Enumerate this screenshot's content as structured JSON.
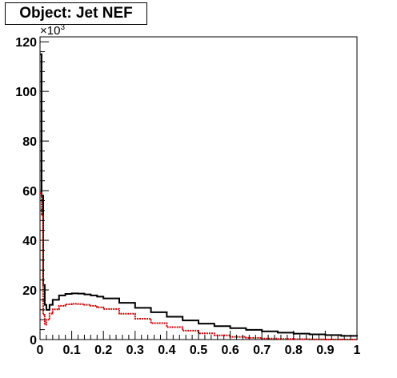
{
  "title": "Object: Jet NEF",
  "chart_data": {
    "type": "line",
    "title": "Object: Jet NEF",
    "xlabel": "",
    "ylabel": "",
    "y_multiplier_label": "×10",
    "y_multiplier_exponent": "3",
    "xlim": [
      0,
      1
    ],
    "ylim": [
      0,
      122
    ],
    "x_ticks": [
      0,
      0.1,
      0.2,
      0.3,
      0.4,
      0.5,
      0.6,
      0.7,
      0.8,
      0.9,
      1
    ],
    "x_tick_labels": [
      "0",
      "0.1",
      "0.2",
      "0.3",
      "0.4",
      "0.5",
      "0.6",
      "0.7",
      "0.8",
      "0.9",
      "1"
    ],
    "y_ticks": [
      0,
      20,
      40,
      60,
      80,
      100,
      120
    ],
    "y_tick_labels": [
      "0",
      "20",
      "40",
      "60",
      "80",
      "100",
      "120"
    ],
    "grid": false,
    "legend": "none",
    "series": [
      {
        "color": "#000000",
        "style": "step",
        "points": [
          [
            0.0,
            115
          ],
          [
            0.005,
            58
          ],
          [
            0.01,
            22
          ],
          [
            0.015,
            14
          ],
          [
            0.02,
            12
          ],
          [
            0.03,
            14
          ],
          [
            0.04,
            16
          ],
          [
            0.06,
            17.8
          ],
          [
            0.08,
            18.4
          ],
          [
            0.1,
            18.6
          ],
          [
            0.12,
            18.5
          ],
          [
            0.14,
            18.2
          ],
          [
            0.16,
            17.8
          ],
          [
            0.18,
            17.3
          ],
          [
            0.2,
            16.6
          ],
          [
            0.25,
            14.8
          ],
          [
            0.3,
            12.8
          ],
          [
            0.35,
            11.0
          ],
          [
            0.4,
            9.2
          ],
          [
            0.45,
            7.7
          ],
          [
            0.5,
            6.4
          ],
          [
            0.55,
            5.4
          ],
          [
            0.6,
            4.6
          ],
          [
            0.65,
            3.9
          ],
          [
            0.7,
            3.3
          ],
          [
            0.75,
            2.8
          ],
          [
            0.8,
            2.4
          ],
          [
            0.85,
            2.1
          ],
          [
            0.9,
            1.8
          ],
          [
            0.95,
            1.5
          ],
          [
            1.0,
            1.2
          ]
        ]
      },
      {
        "color": "#cc0000",
        "style": "dotted-step",
        "points": [
          [
            0.0,
            59
          ],
          [
            0.005,
            50
          ],
          [
            0.01,
            10
          ],
          [
            0.015,
            6
          ],
          [
            0.02,
            8
          ],
          [
            0.03,
            10.5
          ],
          [
            0.04,
            12.2
          ],
          [
            0.06,
            13.6
          ],
          [
            0.08,
            14.2
          ],
          [
            0.1,
            14.4
          ],
          [
            0.12,
            14.3
          ],
          [
            0.14,
            14.0
          ],
          [
            0.16,
            13.6
          ],
          [
            0.18,
            13.0
          ],
          [
            0.2,
            12.3
          ],
          [
            0.25,
            10.4
          ],
          [
            0.3,
            8.4
          ],
          [
            0.35,
            6.6
          ],
          [
            0.4,
            5.0
          ],
          [
            0.45,
            3.6
          ],
          [
            0.5,
            2.5
          ],
          [
            0.55,
            1.7
          ],
          [
            0.6,
            1.1
          ],
          [
            0.65,
            0.7
          ],
          [
            0.7,
            0.4
          ],
          [
            0.75,
            0.25
          ],
          [
            0.8,
            0.15
          ],
          [
            0.85,
            0.08
          ],
          [
            0.9,
            0.05
          ],
          [
            0.95,
            0.03
          ],
          [
            1.0,
            0.02
          ]
        ]
      }
    ]
  }
}
